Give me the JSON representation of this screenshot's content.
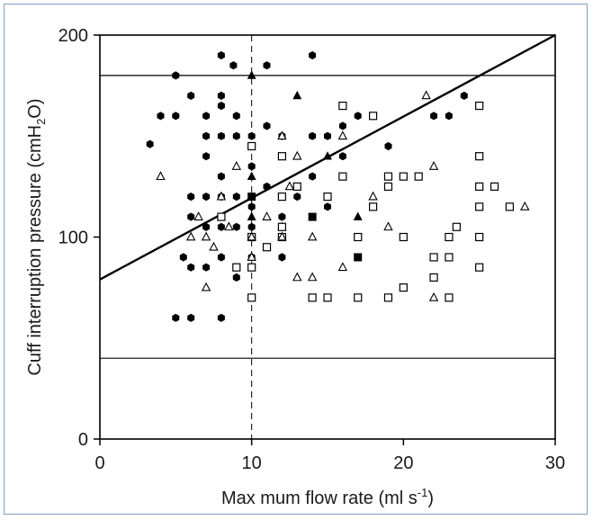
{
  "chart_data": {
    "type": "scatter",
    "title": "",
    "xlabel": {
      "main": "Max mum flow rate (ml s",
      "sup": "-1",
      "end": ")"
    },
    "ylabel": {
      "main": "Cuff interruption pressure (cmH",
      "sub": "2",
      "end": "O)"
    },
    "xlim": [
      0,
      30
    ],
    "ylim": [
      0,
      200
    ],
    "xticks": [
      0,
      10,
      20,
      30
    ],
    "yticks": [
      0,
      100,
      200
    ],
    "xtick_labels": [
      "0",
      "10",
      "20",
      "30"
    ],
    "ytick_labels": [
      "0",
      "100",
      "200"
    ],
    "grid": false,
    "reference_lines": {
      "horizontal": [
        180,
        40
      ],
      "vertical_dashed": [
        10
      ]
    },
    "regression_line": {
      "x": [
        0,
        30
      ],
      "y": [
        79,
        200
      ]
    },
    "series": [
      {
        "marker": "filled-hexagon",
        "points": [
          [
            3.3,
            146
          ],
          [
            4,
            160
          ],
          [
            5,
            180
          ],
          [
            5,
            160
          ],
          [
            5,
            60
          ],
          [
            5.5,
            90
          ],
          [
            6,
            170
          ],
          [
            6,
            120
          ],
          [
            6,
            110
          ],
          [
            6,
            85
          ],
          [
            6,
            60
          ],
          [
            7,
            160
          ],
          [
            7,
            150
          ],
          [
            7,
            140
          ],
          [
            7,
            120
          ],
          [
            7,
            105
          ],
          [
            7,
            85
          ],
          [
            8,
            190
          ],
          [
            8,
            170
          ],
          [
            8,
            165
          ],
          [
            8,
            150
          ],
          [
            8,
            130
          ],
          [
            8,
            120
          ],
          [
            8,
            105
          ],
          [
            8,
            90
          ],
          [
            8,
            60
          ],
          [
            8.8,
            185
          ],
          [
            9,
            160
          ],
          [
            9,
            150
          ],
          [
            9,
            120
          ],
          [
            9,
            105
          ],
          [
            9,
            80
          ],
          [
            10,
            150
          ],
          [
            10,
            135
          ],
          [
            10,
            115
          ],
          [
            10,
            90
          ],
          [
            11,
            185
          ],
          [
            11,
            155
          ],
          [
            11,
            125
          ],
          [
            12,
            150
          ],
          [
            12,
            110
          ],
          [
            12,
            90
          ],
          [
            13,
            120
          ],
          [
            14,
            190
          ],
          [
            14,
            150
          ],
          [
            14,
            130
          ],
          [
            15,
            150
          ],
          [
            15,
            115
          ],
          [
            16,
            155
          ],
          [
            16,
            140
          ],
          [
            17,
            160
          ],
          [
            19,
            145
          ],
          [
            22,
            160
          ],
          [
            23,
            160
          ],
          [
            24,
            170
          ],
          [
            10,
            105
          ]
        ]
      },
      {
        "marker": "filled-triangle",
        "points": [
          [
            10,
            180
          ],
          [
            13,
            170
          ],
          [
            10,
            130
          ],
          [
            15,
            140
          ],
          [
            10,
            110
          ],
          [
            12,
            105
          ],
          [
            17,
            110
          ]
        ]
      },
      {
        "marker": "filled-square",
        "points": [
          [
            10,
            120
          ],
          [
            14,
            110
          ],
          [
            17,
            90
          ]
        ]
      },
      {
        "marker": "open-square",
        "points": [
          [
            8,
            110
          ],
          [
            9,
            85
          ],
          [
            10,
            145
          ],
          [
            10,
            100
          ],
          [
            10,
            85
          ],
          [
            10,
            70
          ],
          [
            11,
            95
          ],
          [
            12,
            140
          ],
          [
            12,
            120
          ],
          [
            12,
            105
          ],
          [
            12,
            100
          ],
          [
            13,
            125
          ],
          [
            14,
            70
          ],
          [
            15,
            70
          ],
          [
            15,
            120
          ],
          [
            16,
            165
          ],
          [
            16,
            130
          ],
          [
            17,
            100
          ],
          [
            17,
            70
          ],
          [
            18,
            160
          ],
          [
            18,
            115
          ],
          [
            19,
            130
          ],
          [
            19,
            125
          ],
          [
            19,
            70
          ],
          [
            20,
            130
          ],
          [
            20,
            100
          ],
          [
            20,
            75
          ],
          [
            21,
            130
          ],
          [
            22,
            90
          ],
          [
            22,
            80
          ],
          [
            23,
            100
          ],
          [
            23,
            90
          ],
          [
            23,
            70
          ],
          [
            23.5,
            105
          ],
          [
            25,
            165
          ],
          [
            25,
            140
          ],
          [
            25,
            125
          ],
          [
            25,
            115
          ],
          [
            25,
            100
          ],
          [
            25,
            85
          ],
          [
            26,
            125
          ],
          [
            27,
            115
          ]
        ]
      },
      {
        "marker": "open-triangle",
        "points": [
          [
            4,
            130
          ],
          [
            6,
            100
          ],
          [
            6.5,
            110
          ],
          [
            7,
            100
          ],
          [
            7,
            75
          ],
          [
            7.5,
            95
          ],
          [
            8,
            120
          ],
          [
            8.5,
            105
          ],
          [
            9,
            135
          ],
          [
            10,
            100
          ],
          [
            10,
            90
          ],
          [
            11,
            110
          ],
          [
            12,
            150
          ],
          [
            12,
            100
          ],
          [
            13,
            140
          ],
          [
            13,
            80
          ],
          [
            14,
            100
          ],
          [
            14,
            80
          ],
          [
            16,
            150
          ],
          [
            16,
            85
          ],
          [
            18,
            120
          ],
          [
            19,
            105
          ],
          [
            21.5,
            170
          ],
          [
            22,
            135
          ],
          [
            22,
            70
          ],
          [
            28,
            115
          ],
          [
            12.5,
            125
          ]
        ]
      }
    ]
  }
}
